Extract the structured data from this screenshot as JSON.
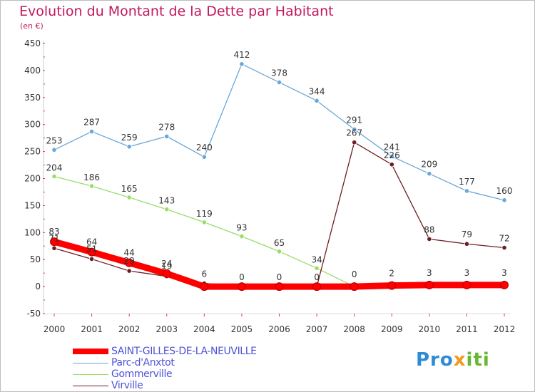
{
  "header": {
    "title": "Evolution du Montant de la Dette par Habitant",
    "subtitle": "(en €)"
  },
  "logo": {
    "text": "Proxiti",
    "parts": [
      "Pro",
      "x",
      "iti"
    ]
  },
  "colors": {
    "title": "#c2185b",
    "saint_gilles": "#ff0000",
    "parc": "#6aa7d8",
    "gommerville": "#99dd66",
    "virville": "#6b1f22",
    "legend_text": "#4f52d9"
  },
  "chart_data": {
    "type": "line",
    "title": "Evolution du Montant de la Dette par Habitant",
    "subtitle": "(en €)",
    "xlabel": "",
    "ylabel": "",
    "categories": [
      "2000",
      "2001",
      "2002",
      "2003",
      "2004",
      "2005",
      "2006",
      "2007",
      "2008",
      "2009",
      "2010",
      "2011",
      "2012"
    ],
    "ylim": [
      -50,
      450
    ],
    "yticks": [
      -50,
      0,
      50,
      100,
      150,
      200,
      250,
      300,
      350,
      400,
      450
    ],
    "grid": false,
    "legend_position": "bottom-left",
    "series": [
      {
        "name": "SAINT-GILLES-DE-LA-NEUVILLE",
        "color": "#ff0000",
        "values": [
          83,
          64,
          44,
          24,
          0,
          0,
          0,
          0,
          0,
          2,
          3,
          3,
          3
        ]
      },
      {
        "name": "Parc-d'Anxtot",
        "color": "#6aa7d8",
        "values": [
          253,
          287,
          259,
          278,
          240,
          412,
          378,
          344,
          291,
          241,
          209,
          177,
          160
        ]
      },
      {
        "name": "Gommerville",
        "color": "#99dd66",
        "values": [
          204,
          186,
          165,
          143,
          119,
          93,
          65,
          34,
          0,
          0,
          0,
          0,
          0
        ]
      },
      {
        "name": "Virville",
        "color": "#6b1f22",
        "values": [
          71,
          51,
          29,
          19,
          6,
          0,
          0,
          0,
          267,
          226,
          88,
          79,
          72
        ]
      }
    ]
  }
}
